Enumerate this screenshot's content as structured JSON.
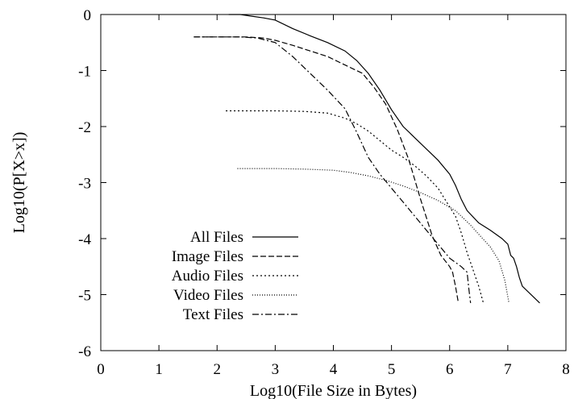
{
  "chart_data": {
    "type": "line",
    "xlabel": "Log10(File Size in Bytes)",
    "ylabel": "Log10(P[X>x])",
    "xlim": [
      0,
      8
    ],
    "ylim": [
      -6,
      0
    ],
    "xticks": [
      "0",
      "1",
      "2",
      "3",
      "4",
      "5",
      "6",
      "7",
      "8"
    ],
    "yticks": [
      "0",
      "-1",
      "-2",
      "-3",
      "-4",
      "-5",
      "-6"
    ],
    "grid": false,
    "legend_position": "bottom-left",
    "series": [
      {
        "name": "All Files",
        "dash": "solid",
        "x": [
          2.2,
          2.4,
          2.6,
          2.8,
          3.0,
          3.3,
          3.6,
          3.9,
          4.2,
          4.4,
          4.6,
          4.8,
          5.0,
          5.2,
          5.4,
          5.6,
          5.8,
          6.0,
          6.1,
          6.2,
          6.3,
          6.5,
          6.7,
          6.9,
          7.0,
          7.05,
          7.1,
          7.15,
          7.2,
          7.25,
          7.55
        ],
        "y": [
          0.0,
          0.0,
          -0.03,
          -0.06,
          -0.1,
          -0.25,
          -0.38,
          -0.5,
          -0.65,
          -0.82,
          -1.05,
          -1.35,
          -1.7,
          -2.0,
          -2.2,
          -2.4,
          -2.6,
          -2.85,
          -3.05,
          -3.3,
          -3.5,
          -3.72,
          -3.85,
          -4.0,
          -4.1,
          -4.3,
          -4.35,
          -4.5,
          -4.7,
          -4.85,
          -5.15
        ]
      },
      {
        "name": "Image Files",
        "dash": "dashed",
        "x": [
          1.6,
          1.9,
          2.2,
          2.5,
          2.8,
          3.0,
          3.3,
          3.6,
          3.9,
          4.2,
          4.5,
          4.7,
          4.9,
          5.1,
          5.3,
          5.5,
          5.7,
          5.85,
          6.0,
          6.05,
          6.1,
          6.15
        ],
        "y": [
          -0.4,
          -0.4,
          -0.4,
          -0.4,
          -0.42,
          -0.46,
          -0.55,
          -0.65,
          -0.75,
          -0.9,
          -1.05,
          -1.3,
          -1.6,
          -2.05,
          -2.6,
          -3.3,
          -3.95,
          -4.3,
          -4.5,
          -4.6,
          -4.85,
          -5.15
        ]
      },
      {
        "name": "Audio Files",
        "dash": "dotted",
        "x": [
          2.15,
          2.5,
          3.0,
          3.5,
          3.9,
          4.2,
          4.4,
          4.6,
          4.8,
          5.0,
          5.2,
          5.4,
          5.6,
          5.8,
          5.95,
          6.1,
          6.2,
          6.3,
          6.4,
          6.5,
          6.58
        ],
        "y": [
          -1.72,
          -1.72,
          -1.72,
          -1.73,
          -1.76,
          -1.85,
          -1.95,
          -2.08,
          -2.25,
          -2.42,
          -2.55,
          -2.7,
          -2.88,
          -3.1,
          -3.35,
          -3.6,
          -3.9,
          -4.25,
          -4.55,
          -4.85,
          -5.15
        ]
      },
      {
        "name": "Video Files",
        "dash": "fine-dotted",
        "x": [
          2.35,
          3.0,
          3.5,
          4.0,
          4.3,
          4.6,
          4.9,
          5.2,
          5.5,
          5.8,
          6.1,
          6.35,
          6.55,
          6.7,
          6.85,
          6.95,
          7.02
        ],
        "y": [
          -2.75,
          -2.75,
          -2.76,
          -2.78,
          -2.82,
          -2.88,
          -2.96,
          -3.06,
          -3.18,
          -3.32,
          -3.5,
          -3.75,
          -3.98,
          -4.15,
          -4.4,
          -4.75,
          -5.15
        ]
      },
      {
        "name": "Text Files",
        "dash": "dash-dot",
        "x": [
          1.6,
          2.0,
          2.4,
          2.7,
          3.0,
          3.3,
          3.6,
          3.9,
          4.2,
          4.4,
          4.6,
          4.8,
          5.0,
          5.2,
          5.4,
          5.6,
          5.8,
          6.0,
          6.2,
          6.3,
          6.33,
          6.36
        ],
        "y": [
          -0.4,
          -0.4,
          -0.4,
          -0.42,
          -0.5,
          -0.75,
          -1.05,
          -1.35,
          -1.68,
          -2.1,
          -2.55,
          -2.85,
          -3.1,
          -3.35,
          -3.6,
          -3.85,
          -4.1,
          -4.35,
          -4.5,
          -4.6,
          -4.9,
          -5.15
        ]
      }
    ]
  }
}
